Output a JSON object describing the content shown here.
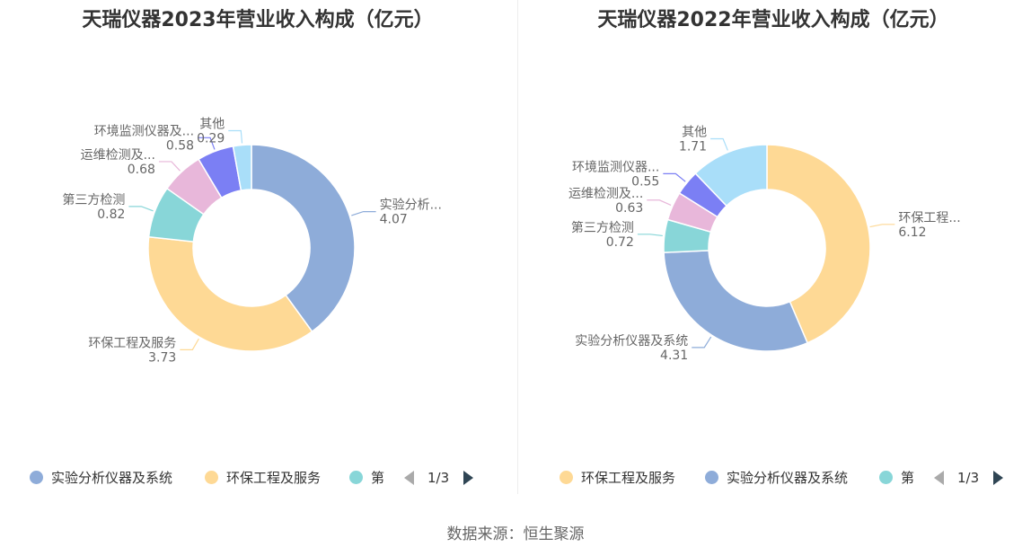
{
  "chart_data": [
    {
      "type": "pie",
      "title": "天瑞仪器2023年营业收入构成（亿元）",
      "slices": [
        {
          "name": "实验分析仪器及系统",
          "label": "实验分析...",
          "value": 4.07,
          "color": "#8eacd9"
        },
        {
          "name": "环保工程及服务",
          "label": "环保工程及服务",
          "value": 3.73,
          "color": "#fed995"
        },
        {
          "name": "第三方检测",
          "label": "第三方检测",
          "value": 0.82,
          "color": "#88d6d8"
        },
        {
          "name": "运维检测及服务",
          "label": "运维检测及...",
          "value": 0.68,
          "color": "#e8b7da"
        },
        {
          "name": "环境监测仪器及系统",
          "label": "环境监测仪器及...",
          "value": 0.58,
          "color": "#7b7ff4"
        },
        {
          "name": "其他",
          "label": "其他",
          "value": 0.29,
          "color": "#a9def9"
        }
      ],
      "legend": {
        "items": [
          "实验分析仪器及系统",
          "环保工程及服务",
          "第"
        ],
        "page": "1/3",
        "position": "bottom"
      }
    },
    {
      "type": "pie",
      "title": "天瑞仪器2022年营业收入构成（亿元）",
      "slices": [
        {
          "name": "环保工程及服务",
          "label": "环保工程...",
          "value": 6.12,
          "color": "#fed995"
        },
        {
          "name": "实验分析仪器及系统",
          "label": "实验分析仪器及系统",
          "value": 4.31,
          "color": "#8eacd9"
        },
        {
          "name": "第三方检测",
          "label": "第三方检测",
          "value": 0.72,
          "color": "#88d6d8"
        },
        {
          "name": "运维检测及服务",
          "label": "运维检测及...",
          "value": 0.63,
          "color": "#e8b7da"
        },
        {
          "name": "环境监测仪器及系统",
          "label": "环境监测仪器...",
          "value": 0.55,
          "color": "#7b7ff4"
        },
        {
          "name": "其他",
          "label": "其他",
          "value": 1.71,
          "color": "#a9def9"
        }
      ],
      "legend": {
        "items": [
          "环保工程及服务",
          "实验分析仪器及系统",
          "第"
        ],
        "page": "1/3",
        "position": "bottom"
      }
    }
  ],
  "source": "数据来源：恒生聚源"
}
